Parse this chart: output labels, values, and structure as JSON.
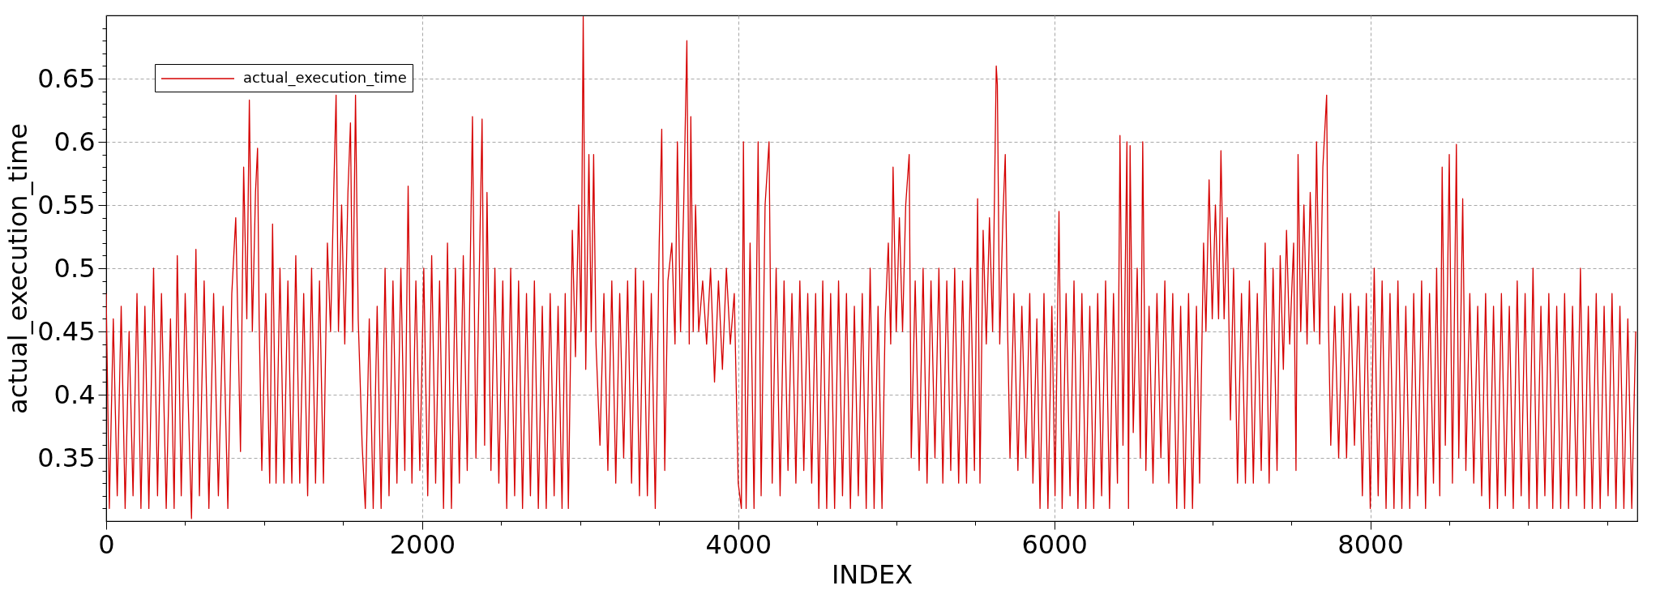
{
  "chart_data": {
    "type": "line",
    "xlabel": "INDEX",
    "ylabel": "actual_execution_time",
    "x": [
      0,
      20,
      45,
      70,
      95,
      120,
      145,
      170,
      195,
      220,
      245,
      270,
      300,
      325,
      350,
      380,
      407,
      430,
      450,
      475,
      500,
      540,
      568,
      590,
      620,
      650,
      680,
      710,
      740,
      770,
      795,
      820,
      850,
      870,
      890,
      906,
      925,
      945,
      958,
      968,
      985,
      1010,
      1035,
      1053,
      1075,
      1100,
      1125,
      1150,
      1175,
      1200,
      1225,
      1250,
      1275,
      1300,
      1325,
      1350,
      1375,
      1400,
      1420,
      1440,
      1455,
      1470,
      1490,
      1510,
      1530,
      1546,
      1560,
      1578,
      1595,
      1620,
      1640,
      1665,
      1690,
      1715,
      1740,
      1765,
      1790,
      1815,
      1840,
      1865,
      1890,
      1911,
      1935,
      1960,
      1985,
      2010,
      2035,
      2060,
      2085,
      2110,
      2135,
      2160,
      2185,
      2210,
      2235,
      2260,
      2285,
      2318,
      2340,
      2379,
      2395,
      2410,
      2435,
      2460,
      2485,
      2510,
      2535,
      2560,
      2585,
      2610,
      2635,
      2660,
      2685,
      2710,
      2735,
      2760,
      2785,
      2810,
      2835,
      2860,
      2885,
      2905,
      2925,
      2950,
      2970,
      2990,
      3005,
      3019,
      3035,
      3055,
      3070,
      3085,
      3100,
      3125,
      3150,
      3175,
      3200,
      3225,
      3250,
      3275,
      3300,
      3325,
      3350,
      3375,
      3400,
      3425,
      3450,
      3475,
      3500,
      3516,
      3535,
      3555,
      3580,
      3600,
      3615,
      3635,
      3655,
      3675,
      3690,
      3700,
      3715,
      3730,
      3750,
      3775,
      3800,
      3825,
      3850,
      3875,
      3900,
      3925,
      3950,
      3975,
      4000,
      4020,
      4033,
      4050,
      4075,
      4100,
      4126,
      4145,
      4170,
      4195,
      4215,
      4240,
      4265,
      4290,
      4315,
      4340,
      4365,
      4390,
      4415,
      4440,
      4465,
      4490,
      4510,
      4535,
      4560,
      4585,
      4610,
      4635,
      4660,
      4685,
      4710,
      4735,
      4760,
      4785,
      4810,
      4835,
      4860,
      4885,
      4910,
      4930,
      4950,
      4965,
      4980,
      5000,
      5020,
      5040,
      5060,
      5082,
      5095,
      5120,
      5145,
      5170,
      5195,
      5220,
      5245,
      5270,
      5295,
      5320,
      5345,
      5370,
      5395,
      5420,
      5445,
      5470,
      5495,
      5515,
      5530,
      5550,
      5570,
      5590,
      5610,
      5633,
      5640,
      5655,
      5675,
      5690,
      5705,
      5720,
      5745,
      5770,
      5795,
      5820,
      5845,
      5865,
      5890,
      5910,
      5935,
      5960,
      5985,
      6005,
      6030,
      6050,
      6075,
      6100,
      6125,
      6150,
      6175,
      6200,
      6225,
      6250,
      6275,
      6300,
      6325,
      6350,
      6375,
      6400,
      6416,
      6435,
      6460,
      6470,
      6480,
      6500,
      6525,
      6545,
      6560,
      6580,
      6600,
      6625,
      6650,
      6675,
      6700,
      6725,
      6750,
      6775,
      6800,
      6825,
      6850,
      6875,
      6900,
      6920,
      6945,
      6960,
      6980,
      7000,
      7020,
      7040,
      7055,
      7075,
      7095,
      7115,
      7135,
      7160,
      7185,
      7210,
      7235,
      7260,
      7285,
      7310,
      7335,
      7360,
      7385,
      7410,
      7430,
      7450,
      7470,
      7490,
      7515,
      7530,
      7543,
      7560,
      7580,
      7600,
      7620,
      7645,
      7660,
      7680,
      7700,
      7724,
      7735,
      7750,
      7775,
      7800,
      7825,
      7850,
      7875,
      7900,
      7925,
      7950,
      7975,
      8000,
      8025,
      8050,
      8075,
      8100,
      8125,
      8150,
      8175,
      8200,
      8225,
      8250,
      8275,
      8300,
      8325,
      8350,
      8375,
      8400,
      8420,
      8440,
      8455,
      8475,
      8500,
      8520,
      8545,
      8560,
      8585,
      8605,
      8630,
      8655,
      8680,
      8705,
      8730,
      8755,
      8780,
      8805,
      8830,
      8855,
      8880,
      8905,
      8930,
      8955,
      8980,
      9005,
      9030,
      9055,
      9080,
      9105,
      9130,
      9155,
      9180,
      9205,
      9230,
      9255,
      9280,
      9305,
      9330,
      9355,
      9380,
      9405,
      9430,
      9455,
      9480,
      9505,
      9530,
      9555,
      9580,
      9605,
      9630,
      9655,
      9680
    ],
    "series": [
      {
        "name": "actual_execution_time",
        "color": "#d50000",
        "values": [
          0.48,
          0.31,
          0.46,
          0.32,
          0.47,
          0.31,
          0.45,
          0.32,
          0.48,
          0.31,
          0.47,
          0.31,
          0.5,
          0.32,
          0.48,
          0.31,
          0.46,
          0.31,
          0.51,
          0.32,
          0.48,
          0.302,
          0.515,
          0.32,
          0.49,
          0.31,
          0.48,
          0.32,
          0.47,
          0.31,
          0.48,
          0.54,
          0.355,
          0.58,
          0.46,
          0.633,
          0.45,
          0.56,
          0.595,
          0.46,
          0.34,
          0.48,
          0.33,
          0.535,
          0.33,
          0.5,
          0.33,
          0.49,
          0.33,
          0.51,
          0.33,
          0.48,
          0.32,
          0.5,
          0.33,
          0.49,
          0.33,
          0.52,
          0.45,
          0.56,
          0.637,
          0.45,
          0.55,
          0.44,
          0.56,
          0.615,
          0.45,
          0.637,
          0.46,
          0.36,
          0.31,
          0.46,
          0.31,
          0.47,
          0.31,
          0.5,
          0.32,
          0.49,
          0.33,
          0.5,
          0.34,
          0.565,
          0.33,
          0.49,
          0.34,
          0.5,
          0.32,
          0.51,
          0.33,
          0.49,
          0.31,
          0.52,
          0.31,
          0.5,
          0.33,
          0.51,
          0.34,
          0.62,
          0.35,
          0.618,
          0.36,
          0.56,
          0.34,
          0.5,
          0.33,
          0.49,
          0.31,
          0.5,
          0.32,
          0.49,
          0.31,
          0.48,
          0.32,
          0.49,
          0.31,
          0.47,
          0.31,
          0.48,
          0.32,
          0.47,
          0.31,
          0.48,
          0.31,
          0.53,
          0.43,
          0.55,
          0.45,
          0.699,
          0.42,
          0.59,
          0.45,
          0.59,
          0.44,
          0.36,
          0.48,
          0.34,
          0.49,
          0.33,
          0.48,
          0.35,
          0.49,
          0.33,
          0.5,
          0.32,
          0.49,
          0.32,
          0.48,
          0.31,
          0.52,
          0.61,
          0.34,
          0.49,
          0.52,
          0.44,
          0.6,
          0.45,
          0.55,
          0.68,
          0.44,
          0.62,
          0.45,
          0.55,
          0.45,
          0.49,
          0.44,
          0.5,
          0.41,
          0.49,
          0.42,
          0.5,
          0.44,
          0.48,
          0.33,
          0.31,
          0.6,
          0.31,
          0.52,
          0.31,
          0.6,
          0.32,
          0.55,
          0.6,
          0.33,
          0.5,
          0.32,
          0.49,
          0.34,
          0.48,
          0.33,
          0.49,
          0.34,
          0.48,
          0.33,
          0.48,
          0.31,
          0.49,
          0.31,
          0.48,
          0.31,
          0.49,
          0.32,
          0.48,
          0.31,
          0.47,
          0.32,
          0.48,
          0.31,
          0.5,
          0.31,
          0.47,
          0.31,
          0.46,
          0.52,
          0.44,
          0.58,
          0.45,
          0.54,
          0.45,
          0.55,
          0.59,
          0.35,
          0.49,
          0.34,
          0.5,
          0.33,
          0.49,
          0.35,
          0.5,
          0.33,
          0.49,
          0.34,
          0.5,
          0.33,
          0.49,
          0.33,
          0.5,
          0.34,
          0.555,
          0.33,
          0.53,
          0.44,
          0.54,
          0.45,
          0.66,
          0.645,
          0.44,
          0.54,
          0.59,
          0.45,
          0.35,
          0.48,
          0.34,
          0.47,
          0.35,
          0.48,
          0.33,
          0.46,
          0.31,
          0.48,
          0.31,
          0.47,
          0.32,
          0.545,
          0.31,
          0.48,
          0.32,
          0.49,
          0.31,
          0.48,
          0.31,
          0.47,
          0.31,
          0.48,
          0.32,
          0.49,
          0.31,
          0.48,
          0.33,
          0.605,
          0.36,
          0.6,
          0.31,
          0.597,
          0.37,
          0.5,
          0.35,
          0.6,
          0.34,
          0.47,
          0.33,
          0.48,
          0.35,
          0.49,
          0.33,
          0.48,
          0.31,
          0.47,
          0.31,
          0.48,
          0.31,
          0.47,
          0.33,
          0.52,
          0.45,
          0.57,
          0.46,
          0.55,
          0.46,
          0.593,
          0.46,
          0.54,
          0.38,
          0.5,
          0.33,
          0.48,
          0.33,
          0.49,
          0.33,
          0.48,
          0.34,
          0.52,
          0.33,
          0.5,
          0.34,
          0.51,
          0.42,
          0.53,
          0.44,
          0.52,
          0.34,
          0.59,
          0.45,
          0.55,
          0.44,
          0.56,
          0.45,
          0.6,
          0.44,
          0.58,
          0.637,
          0.46,
          0.36,
          0.47,
          0.35,
          0.48,
          0.35,
          0.48,
          0.36,
          0.47,
          0.32,
          0.48,
          0.31,
          0.5,
          0.32,
          0.49,
          0.31,
          0.48,
          0.31,
          0.49,
          0.31,
          0.47,
          0.31,
          0.48,
          0.32,
          0.49,
          0.31,
          0.48,
          0.33,
          0.5,
          0.32,
          0.58,
          0.36,
          0.59,
          0.33,
          0.598,
          0.35,
          0.555,
          0.34,
          0.48,
          0.33,
          0.47,
          0.32,
          0.48,
          0.31,
          0.47,
          0.31,
          0.48,
          0.32,
          0.47,
          0.31,
          0.49,
          0.32,
          0.48,
          0.31,
          0.5,
          0.31,
          0.47,
          0.32,
          0.48,
          0.31,
          0.47,
          0.31,
          0.48,
          0.31,
          0.47,
          0.32,
          0.5,
          0.31,
          0.47,
          0.31,
          0.48,
          0.31,
          0.47,
          0.32,
          0.48,
          0.31,
          0.47,
          0.31,
          0.46,
          0.31,
          0.45
        ]
      }
    ],
    "xlim": [
      0,
      9690
    ],
    "ylim": [
      0.3,
      0.7
    ],
    "xticks": [
      0,
      {
        "value": 500,
        "label": null
      },
      {
        "value": 1000,
        "label": null
      },
      {
        "value": 1500,
        "label": null
      },
      2000,
      {
        "value": 2500,
        "label": null
      },
      {
        "value": 3000,
        "label": null
      },
      {
        "value": 3500,
        "label": null
      },
      4000,
      {
        "value": 4500,
        "label": null
      },
      {
        "value": 5000,
        "label": null
      },
      {
        "value": 5500,
        "label": null
      },
      6000,
      {
        "value": 6500,
        "label": null
      },
      {
        "value": 7000,
        "label": null
      },
      {
        "value": 7500,
        "label": null
      },
      8000,
      {
        "value": 8500,
        "label": null
      },
      {
        "value": 9000,
        "label": null
      },
      {
        "value": 9500,
        "label": null
      }
    ],
    "yticks": [
      {
        "value": 0.31,
        "label": null
      },
      {
        "value": 0.32,
        "label": null
      },
      {
        "value": 0.33,
        "label": null
      },
      {
        "value": 0.34,
        "label": null
      },
      0.35,
      {
        "value": 0.36,
        "label": null
      },
      {
        "value": 0.37,
        "label": null
      },
      {
        "value": 0.38,
        "label": null
      },
      {
        "value": 0.39,
        "label": null
      },
      0.4,
      {
        "value": 0.41,
        "label": null
      },
      {
        "value": 0.42,
        "label": null
      },
      {
        "value": 0.43,
        "label": null
      },
      {
        "value": 0.44,
        "label": null
      },
      0.45,
      {
        "value": 0.46,
        "label": null
      },
      {
        "value": 0.47,
        "label": null
      },
      {
        "value": 0.48,
        "label": null
      },
      {
        "value": 0.49,
        "label": null
      },
      0.5,
      {
        "value": 0.51,
        "label": null
      },
      {
        "value": 0.52,
        "label": null
      },
      {
        "value": 0.53,
        "label": null
      },
      {
        "value": 0.54,
        "label": null
      },
      0.55,
      {
        "value": 0.56,
        "label": null
      },
      {
        "value": 0.57,
        "label": null
      },
      {
        "value": 0.58,
        "label": null
      },
      {
        "value": 0.59,
        "label": null
      },
      0.6,
      {
        "value": 0.61,
        "label": null
      },
      {
        "value": 0.62,
        "label": null
      },
      {
        "value": 0.63,
        "label": null
      },
      {
        "value": 0.64,
        "label": null
      },
      0.65,
      {
        "value": 0.66,
        "label": null
      },
      {
        "value": 0.67,
        "label": null
      },
      {
        "value": 0.68,
        "label": null
      },
      {
        "value": 0.69,
        "label": null
      }
    ],
    "grid": true,
    "legend": "top left",
    "line_style": "solid"
  }
}
